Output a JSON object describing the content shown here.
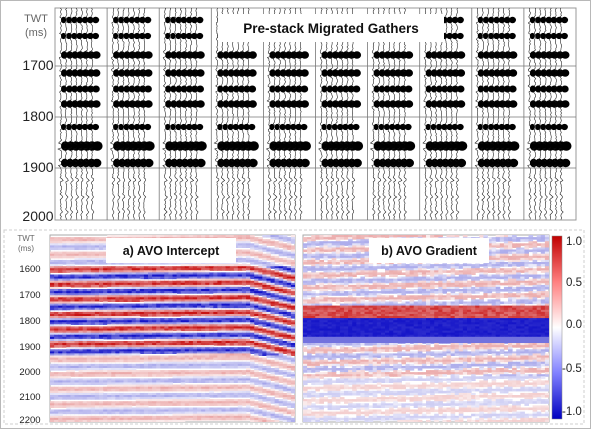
{
  "top_panel": {
    "title": "Pre-stack Migrated Gathers",
    "axis_label_line1": "TWT",
    "axis_label_line2": "(ms)",
    "ticks": [
      "1700",
      "1800",
      "1900",
      "2000"
    ]
  },
  "bottom_panels": {
    "axis_label_line1": "TWT",
    "axis_label_line2": "(ms)",
    "ticks": [
      "1600",
      "1700",
      "1800",
      "1900",
      "2000",
      "2100",
      "2200"
    ],
    "panel_a_title": "a) AVO Intercept",
    "panel_b_title": "b) AVO Gradient"
  },
  "colorbar": {
    "ticks": [
      "1.0",
      "0.5",
      "0.0",
      "-0.5",
      "-1.0"
    ],
    "colors": {
      "positive": "#c00000",
      "zero": "#ffffff",
      "negative": "#0000c0"
    }
  }
}
